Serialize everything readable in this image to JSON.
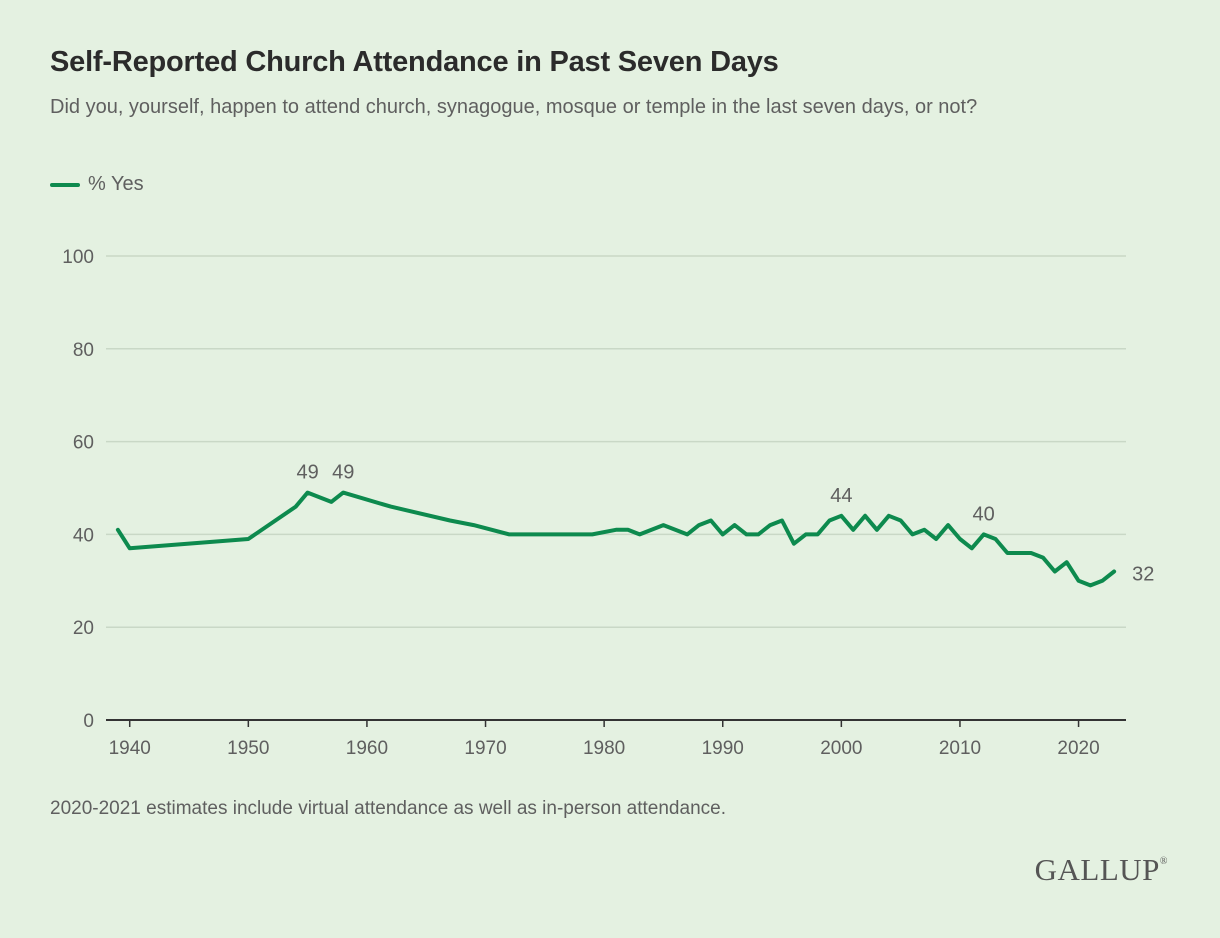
{
  "title": "Self-Reported Church Attendance in Past Seven Days",
  "subtitle": "Did you, yourself, happen to attend church, synagogue, mosque or temple in the last seven days, or not?",
  "note": "2020-2021 estimates include virtual attendance as well as in-person attendance.",
  "brand": "GALLUP",
  "brand_mark": "®",
  "colors": {
    "line": "#0d8a4e",
    "background": "#e4f1e1",
    "grid": "#c9d8c6",
    "axis": "#333333"
  },
  "chart_data": {
    "type": "line",
    "title": "Self-Reported Church Attendance in Past Seven Days",
    "xlabel": "",
    "ylabel": "",
    "xlim": [
      1938,
      2024
    ],
    "ylim": [
      0,
      100
    ],
    "yticks": [
      0,
      20,
      40,
      60,
      80,
      100
    ],
    "xticks": [
      1940,
      1950,
      1960,
      1970,
      1980,
      1990,
      2000,
      2010,
      2020
    ],
    "grid": true,
    "legend": "top-left",
    "series": [
      {
        "name": "% Yes",
        "x": [
          1939,
          1940,
          1950,
          1954,
          1955,
          1957,
          1958,
          1962,
          1967,
          1969,
          1972,
          1979,
          1981,
          1982,
          1983,
          1985,
          1987,
          1988,
          1989,
          1990,
          1991,
          1992,
          1993,
          1994,
          1995,
          1996,
          1997,
          1998,
          1999,
          2000,
          2001,
          2002,
          2003,
          2004,
          2005,
          2006,
          2007,
          2008,
          2009,
          2010,
          2011,
          2012,
          2013,
          2014,
          2015,
          2016,
          2017,
          2018,
          2019,
          2020,
          2021,
          2022,
          2023
        ],
        "y": [
          41,
          37,
          39,
          46,
          49,
          47,
          49,
          46,
          43,
          42,
          40,
          40,
          41,
          41,
          40,
          42,
          40,
          42,
          43,
          40,
          42,
          40,
          40,
          42,
          43,
          38,
          40,
          40,
          43,
          44,
          41,
          44,
          41,
          44,
          43,
          40,
          41,
          39,
          42,
          39,
          37,
          40,
          39,
          36,
          36,
          36,
          35,
          32,
          34,
          30,
          29,
          30,
          32
        ]
      }
    ],
    "annotations": [
      {
        "x": 1955,
        "y": 49,
        "text": "49"
      },
      {
        "x": 1958,
        "y": 49,
        "text": "49"
      },
      {
        "x": 2000,
        "y": 44,
        "text": "44"
      },
      {
        "x": 2012,
        "y": 40,
        "text": "40"
      },
      {
        "x": 2023,
        "y": 32,
        "text": "32"
      }
    ]
  }
}
